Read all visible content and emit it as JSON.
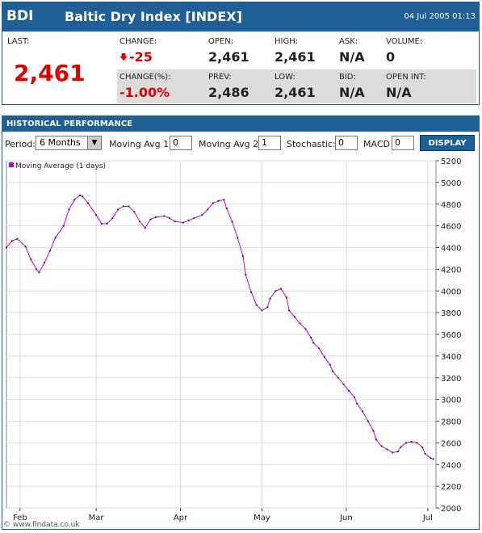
{
  "header": {
    "symbol": "BDI",
    "name": "Baltic Dry Index [INDEX]",
    "timestamp": "04 Jul 2005 01:13"
  },
  "quote": {
    "last_label": "LAST:",
    "last": "2,461",
    "row1": [
      {
        "label": "CHANGE:",
        "value": "-25"
      },
      {
        "label": "OPEN:",
        "value": "2,461"
      },
      {
        "label": "HIGH:",
        "value": "2,461"
      },
      {
        "label": "ASK:",
        "value": "N/A"
      },
      {
        "label": "VOLUME:",
        "value": "0"
      }
    ],
    "row2": [
      {
        "label": "CHANGE(%):",
        "value": "-1.00%"
      },
      {
        "label": "PREV:",
        "value": "2,486"
      },
      {
        "label": "LOW:",
        "value": "2,461"
      },
      {
        "label": "BID:",
        "value": "N/A"
      },
      {
        "label": "OPEN INT:",
        "value": "N/A"
      }
    ]
  },
  "history": {
    "title": "HISTORICAL PERFORMANCE",
    "controls": {
      "period_label": "Period:",
      "period": "6 Months",
      "ma1_label": "Moving Avg 1:",
      "ma1": "0",
      "ma2_label": "Moving Avg 2:",
      "ma2": "1",
      "stoch_label": "Stochastic:",
      "stoch": "0",
      "macd_label": "MACD",
      "macd": "0",
      "button": "DISPLAY"
    }
  },
  "chart_data": {
    "type": "line",
    "grid": true,
    "legend": "top-left",
    "x": [
      27,
      29,
      31,
      34,
      36,
      38,
      39,
      41,
      43,
      45,
      48,
      50,
      52,
      54,
      55,
      57,
      60,
      62,
      64,
      66,
      68,
      70,
      72,
      74,
      76,
      78,
      80,
      82,
      85,
      87,
      89,
      92,
      94,
      96,
      99,
      101,
      103,
      105,
      107,
      108,
      110,
      112,
      114,
      115,
      117,
      119,
      121,
      123,
      124,
      126,
      128,
      130,
      131,
      133,
      135,
      137,
      139,
      140,
      142,
      144,
      146,
      147,
      149,
      151,
      153,
      155,
      156,
      158,
      160,
      162,
      163,
      165,
      167,
      169,
      171,
      172,
      174,
      176,
      178,
      180,
      181,
      183,
      184
    ],
    "series": [
      {
        "name": "Moving Average (1 days)",
        "color": "#cc00cc",
        "values": [
          4400,
          4460,
          4480,
          4410,
          4290,
          4200,
          4170,
          4260,
          4370,
          4490,
          4600,
          4750,
          4840,
          4880,
          4870,
          4810,
          4700,
          4620,
          4620,
          4670,
          4750,
          4780,
          4780,
          4730,
          4640,
          4580,
          4660,
          4680,
          4690,
          4670,
          4640,
          4630,
          4650,
          4670,
          4700,
          4750,
          4810,
          4830,
          4840,
          4760,
          4640,
          4490,
          4320,
          4150,
          3990,
          3870,
          3820,
          3850,
          3930,
          4000,
          4020,
          3940,
          3820,
          3760,
          3700,
          3650,
          3570,
          3520,
          3470,
          3390,
          3320,
          3260,
          3200,
          3140,
          3080,
          3020,
          2960,
          2890,
          2800,
          2710,
          2630,
          2570,
          2540,
          2510,
          2520,
          2560,
          2600,
          2610,
          2600,
          2560,
          2500,
          2460,
          2450
        ]
      }
    ],
    "xlim": [
      27,
      185
    ],
    "xticks": [
      {
        "value": 32,
        "label": "Feb"
      },
      {
        "value": 60,
        "label": "Mar"
      },
      {
        "value": 91,
        "label": "Apr"
      },
      {
        "value": 121,
        "label": "May"
      },
      {
        "value": 152,
        "label": "Jun"
      },
      {
        "value": 182,
        "label": "Jul"
      }
    ],
    "ylim": [
      2000,
      5200
    ],
    "yticks": [
      2000,
      2200,
      2400,
      2600,
      2800,
      3000,
      3200,
      3400,
      3600,
      3800,
      4000,
      4200,
      4400,
      4600,
      4800,
      5000,
      5200
    ]
  },
  "footer": "© www.findata.co.uk"
}
